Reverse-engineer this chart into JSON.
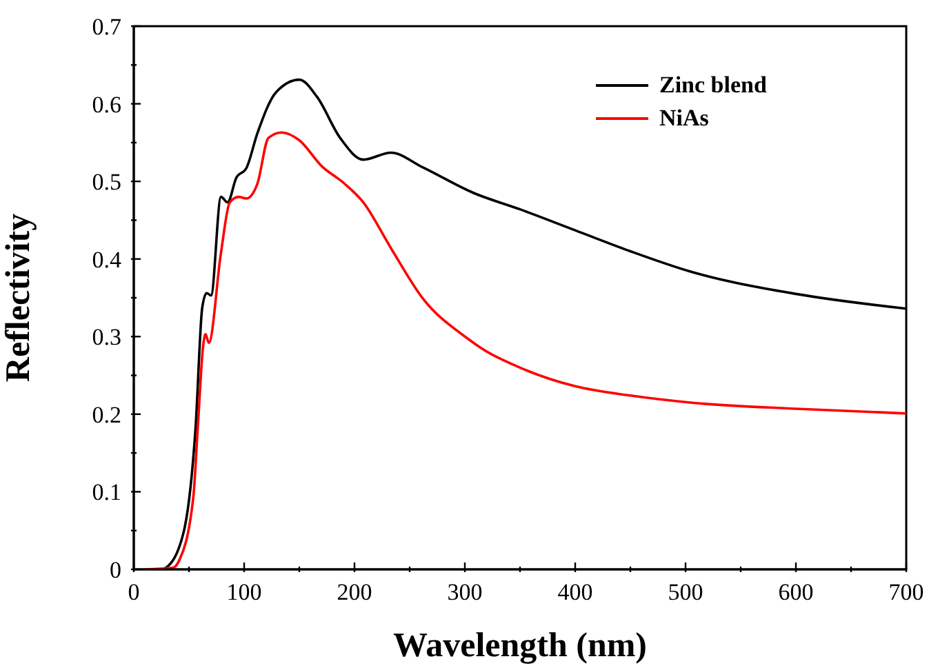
{
  "chart_data": {
    "type": "line",
    "xlabel": "Wavelength (nm)",
    "ylabel": "Reflectivity",
    "xlim": [
      0,
      700
    ],
    "ylim": [
      0,
      0.7
    ],
    "xticks": [
      0,
      {
        "value": 50,
        "label": null
      },
      100,
      {
        "value": 150,
        "label": null
      },
      200,
      {
        "value": 250,
        "label": null
      },
      300,
      {
        "value": 350,
        "label": null
      },
      400,
      {
        "value": 450,
        "label": null
      },
      500,
      {
        "value": 550,
        "label": null
      },
      600,
      {
        "value": 650,
        "label": null
      },
      700
    ],
    "yticks": [
      0.0,
      {
        "value": 0.05,
        "label": null
      },
      {
        "value": 0.1,
        "label": "0.1"
      },
      {
        "value": 0.15,
        "label": null
      },
      {
        "value": 0.2,
        "label": "0.2"
      },
      {
        "value": 0.25,
        "label": null
      },
      {
        "value": 0.3,
        "label": "0.3"
      },
      {
        "value": 0.35,
        "label": null
      },
      {
        "value": 0.4,
        "label": "0.4"
      },
      {
        "value": 0.45,
        "label": null
      },
      {
        "value": 0.5,
        "label": "0.5"
      },
      {
        "value": 0.55,
        "label": null
      },
      {
        "value": 0.6,
        "label": "0.6"
      },
      {
        "value": 0.65,
        "label": null
      },
      {
        "value": 0.7,
        "label": "0.7"
      }
    ],
    "legend": "top right",
    "grid": false,
    "marker": "none",
    "line_style": "solid",
    "series": [
      {
        "name": "Zinc blend",
        "color": "#000000",
        "x": [
          25,
          29,
          45,
          56,
          62,
          66,
          70,
          79,
          85,
          93,
          102,
          112,
          129,
          150,
          166,
          187,
          208,
          233,
          262,
          308,
          350,
          400,
          450,
          504,
          600,
          700
        ],
        "values": [
          0,
          0.002,
          0.047,
          0.183,
          0.337,
          0.356,
          0.353,
          0.48,
          0.473,
          0.505,
          0.517,
          0.562,
          0.615,
          0.631,
          0.609,
          0.556,
          0.528,
          0.537,
          0.518,
          0.485,
          0.464,
          0.437,
          0.41,
          0.384,
          0.355,
          0.336
        ]
      },
      {
        "name": "NiAs",
        "color": "#ff0000",
        "x": [
          10,
          35,
          41,
          54,
          58,
          63,
          65,
          68,
          79,
          87,
          95,
          102,
          112,
          122,
          134,
          150,
          170,
          191,
          208,
          233,
          262,
          302,
          316,
          350,
          400,
          450,
          504,
          600,
          700
        ],
        "values": [
          0,
          0.002,
          0.011,
          0.094,
          0.183,
          0.29,
          0.303,
          0.292,
          0.408,
          0.473,
          0.48,
          0.478,
          0.497,
          0.556,
          0.563,
          0.553,
          0.52,
          0.497,
          0.473,
          0.414,
          0.349,
          0.298,
          0.284,
          0.26,
          0.236,
          0.224,
          0.215,
          0.207,
          0.201
        ]
      }
    ]
  }
}
